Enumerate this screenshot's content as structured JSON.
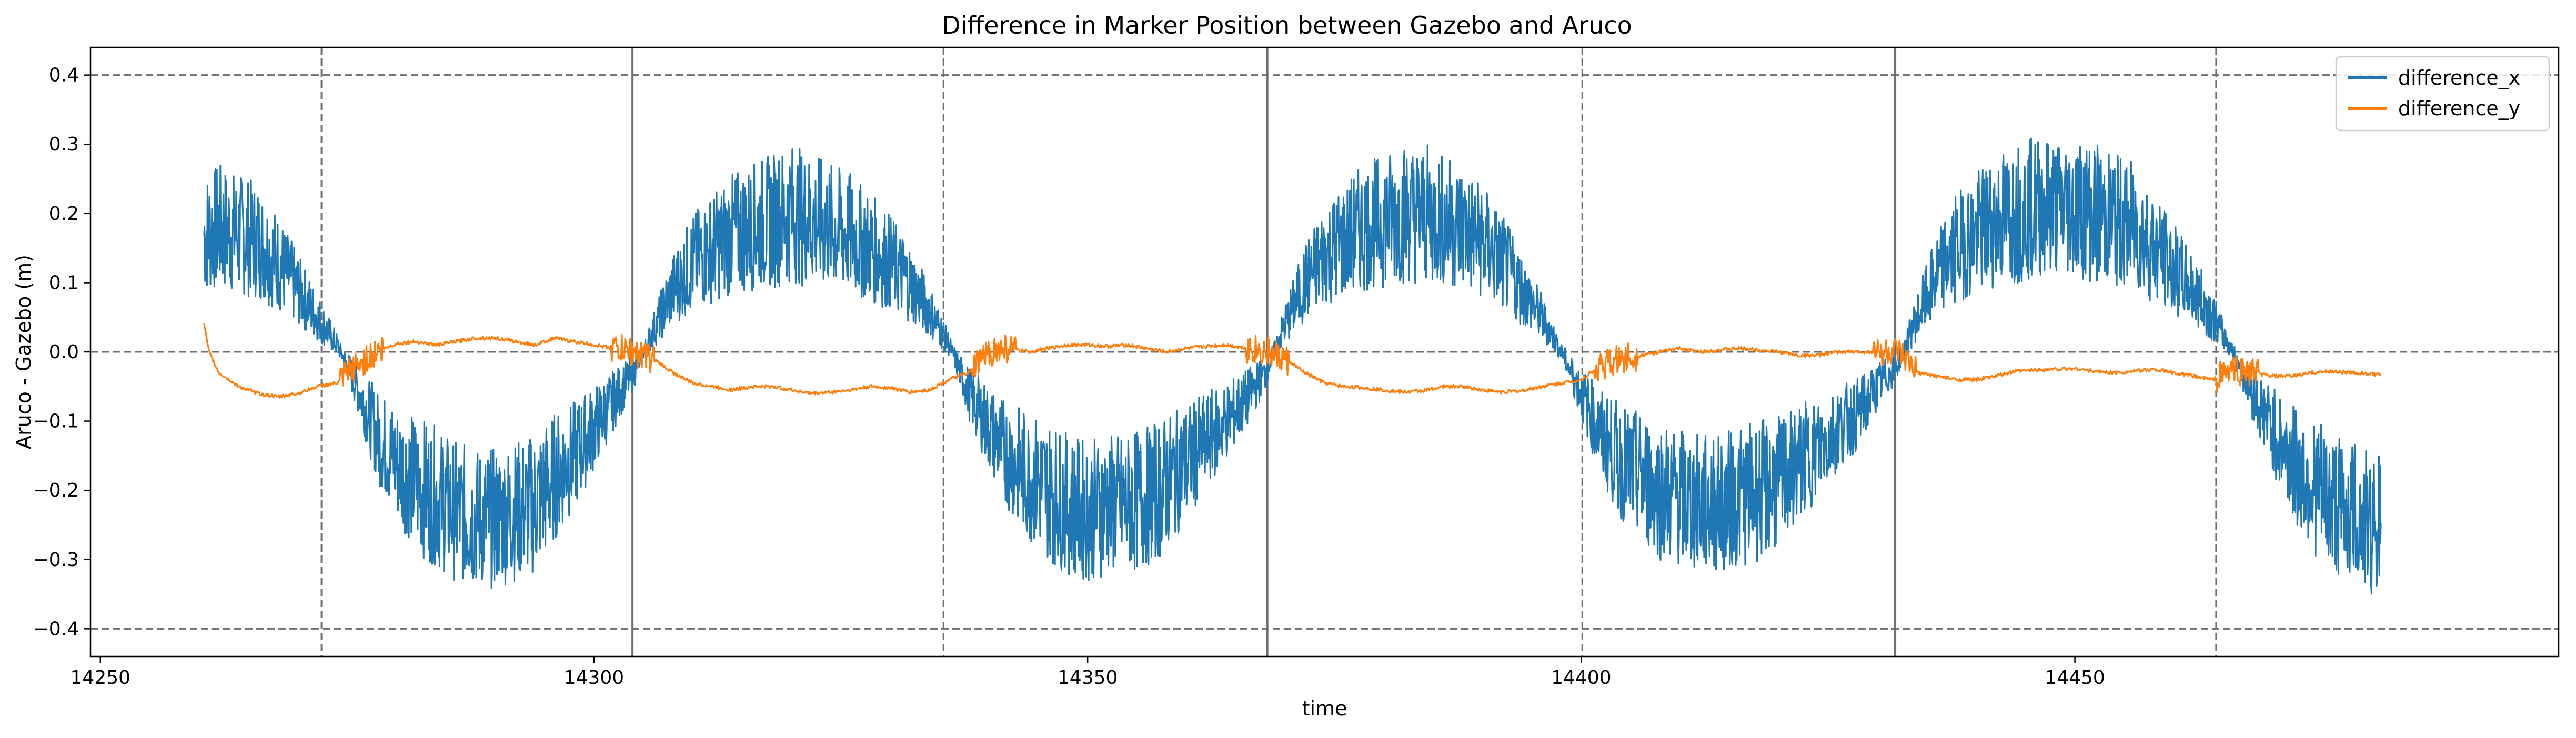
{
  "chart_data": {
    "type": "line",
    "title": "Difference in Marker Position between Gazebo and Aruco",
    "xlabel": "time",
    "ylabel": "Aruco - Gazebo (m)",
    "xlim": [
      14249,
      14499
    ],
    "ylim": [
      -0.44,
      0.44
    ],
    "xticks": [
      14250,
      14300,
      14350,
      14400,
      14450
    ],
    "yticks": [
      -0.4,
      -0.3,
      -0.2,
      -0.1,
      0.0,
      0.1,
      0.2,
      0.3,
      0.4
    ],
    "xtick_labels": [
      "14250",
      "14300",
      "14350",
      "14400",
      "14450"
    ],
    "ytick_labels": [
      "−0.4",
      "−0.3",
      "−0.2",
      "−0.1",
      "0.0",
      "0.1",
      "0.2",
      "0.3",
      "0.4"
    ],
    "grid": false,
    "legend_position": "top-right",
    "reference_lines": {
      "horizontal_dashed": [
        -0.4,
        0.0,
        0.4
      ],
      "vertical_dashed": [
        14272.4,
        14335.4,
        14400.1,
        14464.3
      ],
      "vertical_solid": [
        14303.9,
        14368.2,
        14431.8
      ]
    },
    "series": [
      {
        "name": "difference_x",
        "color": "#1f77b4",
        "x": [
          14260.5,
          14262,
          14264,
          14266,
          14268,
          14270,
          14272,
          14274,
          14276,
          14278,
          14280,
          14282,
          14284,
          14286,
          14288,
          14290,
          14292,
          14294,
          14296,
          14298,
          14300,
          14302,
          14304,
          14306,
          14308,
          14310,
          14312,
          14314,
          14316,
          14318,
          14320,
          14322,
          14324,
          14326,
          14328,
          14330,
          14332,
          14334,
          14336,
          14338,
          14340,
          14342,
          14344,
          14346,
          14348,
          14350,
          14352,
          14354,
          14356,
          14358,
          14360,
          14362,
          14364,
          14366,
          14368,
          14370,
          14372,
          14374,
          14376,
          14378,
          14380,
          14382,
          14384,
          14386,
          14388,
          14390,
          14392,
          14394,
          14396,
          14398,
          14400,
          14402,
          14404,
          14406,
          14408,
          14410,
          14412,
          14414,
          14416,
          14418,
          14420,
          14422,
          14424,
          14426,
          14428,
          14430,
          14432,
          14434,
          14436,
          14438,
          14440,
          14442,
          14444,
          14446,
          14448,
          14450,
          14452,
          14454,
          14456,
          14458,
          14460,
          14462,
          14464,
          14466,
          14468,
          14470,
          14472,
          14474,
          14476,
          14478,
          14480,
          14481
        ],
        "y": [
          0.17,
          0.18,
          0.17,
          0.16,
          0.13,
          0.09,
          0.05,
          0.01,
          -0.05,
          -0.12,
          -0.16,
          -0.19,
          -0.21,
          -0.23,
          -0.24,
          -0.24,
          -0.23,
          -0.22,
          -0.18,
          -0.15,
          -0.11,
          -0.07,
          -0.03,
          0.03,
          0.09,
          0.13,
          0.15,
          0.17,
          0.18,
          0.19,
          0.2,
          0.19,
          0.18,
          0.17,
          0.15,
          0.13,
          0.1,
          0.06,
          0.01,
          -0.06,
          -0.11,
          -0.15,
          -0.18,
          -0.2,
          -0.22,
          -0.23,
          -0.22,
          -0.22,
          -0.21,
          -0.19,
          -0.16,
          -0.13,
          -0.1,
          -0.07,
          -0.03,
          0.04,
          0.1,
          0.14,
          0.16,
          0.18,
          0.19,
          0.2,
          0.2,
          0.19,
          0.18,
          0.16,
          0.13,
          0.09,
          0.05,
          0.0,
          -0.06,
          -0.12,
          -0.16,
          -0.18,
          -0.2,
          -0.21,
          -0.22,
          -0.22,
          -0.21,
          -0.2,
          -0.19,
          -0.16,
          -0.14,
          -0.11,
          -0.09,
          -0.05,
          -0.02,
          0.05,
          0.11,
          0.15,
          0.17,
          0.19,
          0.2,
          0.21,
          0.21,
          0.21,
          0.2,
          0.19,
          0.18,
          0.15,
          0.12,
          0.09,
          0.05,
          0.0,
          -0.06,
          -0.11,
          -0.16,
          -0.19,
          -0.22,
          -0.23,
          -0.25,
          -0.24
        ]
      },
      {
        "name": "difference_y",
        "color": "#ff7f0e",
        "x": [
          14260.5,
          14261,
          14262,
          14264,
          14266,
          14268,
          14270,
          14272,
          14274,
          14276,
          14278,
          14280,
          14282,
          14284,
          14286,
          14288,
          14290,
          14292,
          14294,
          14296,
          14298,
          14300,
          14302,
          14304,
          14306,
          14308,
          14310,
          14312,
          14314,
          14316,
          14318,
          14320,
          14322,
          14324,
          14326,
          14328,
          14330,
          14332,
          14334,
          14336,
          14338,
          14340,
          14342,
          14344,
          14346,
          14348,
          14350,
          14352,
          14354,
          14356,
          14358,
          14360,
          14362,
          14364,
          14366,
          14368,
          14370,
          14372,
          14374,
          14376,
          14378,
          14380,
          14382,
          14384,
          14386,
          14388,
          14390,
          14392,
          14394,
          14396,
          14398,
          14400,
          14402,
          14404,
          14406,
          14408,
          14410,
          14412,
          14414,
          14416,
          14418,
          14420,
          14422,
          14424,
          14426,
          14428,
          14430,
          14432,
          14434,
          14436,
          14438,
          14440,
          14442,
          14444,
          14446,
          14448,
          14450,
          14452,
          14454,
          14456,
          14458,
          14460,
          14462,
          14464,
          14466,
          14468,
          14470,
          14472,
          14474,
          14476,
          14478,
          14480,
          14481
        ],
        "y": [
          0.04,
          0.0,
          -0.03,
          -0.05,
          -0.06,
          -0.065,
          -0.06,
          -0.05,
          -0.045,
          -0.02,
          0.0,
          0.012,
          0.015,
          0.01,
          0.015,
          0.02,
          0.02,
          0.015,
          0.01,
          0.02,
          0.015,
          0.01,
          0.005,
          0.0,
          -0.01,
          -0.03,
          -0.045,
          -0.05,
          -0.055,
          -0.05,
          -0.05,
          -0.055,
          -0.06,
          -0.058,
          -0.055,
          -0.05,
          -0.052,
          -0.058,
          -0.055,
          -0.04,
          -0.03,
          0.0,
          0.005,
          0.0,
          0.005,
          0.01,
          0.01,
          0.008,
          0.01,
          0.005,
          0.0,
          0.005,
          0.008,
          0.01,
          0.006,
          0.0,
          -0.01,
          -0.03,
          -0.045,
          -0.05,
          -0.052,
          -0.055,
          -0.058,
          -0.056,
          -0.05,
          -0.05,
          -0.055,
          -0.058,
          -0.056,
          -0.05,
          -0.045,
          -0.04,
          -0.02,
          -0.01,
          -0.005,
          0.0,
          0.005,
          0.0,
          0.003,
          0.005,
          0.003,
          0.0,
          -0.005,
          -0.005,
          0.0,
          0.0,
          0.0,
          -0.002,
          -0.03,
          -0.035,
          -0.04,
          -0.04,
          -0.035,
          -0.028,
          -0.026,
          -0.025,
          -0.024,
          -0.028,
          -0.03,
          -0.028,
          -0.025,
          -0.03,
          -0.035,
          -0.04,
          -0.025,
          -0.03,
          -0.035,
          -0.035,
          -0.03,
          -0.028,
          -0.03,
          -0.032,
          -0.033
        ]
      }
    ]
  }
}
